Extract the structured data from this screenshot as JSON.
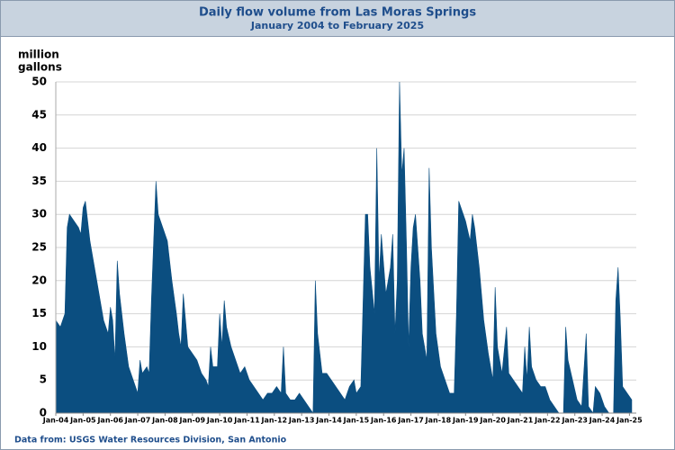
{
  "chart_data": {
    "type": "area",
    "title": "Daily flow volume from Las Moras Springs",
    "subtitle": "January 2004 to February 2025",
    "y_label": [
      "million",
      "gallons"
    ],
    "source": "Data from:  USGS Water Resources Division, San Antonio",
    "color": "#0b4e80",
    "grid": true,
    "ylim": [
      0,
      50
    ],
    "yticks": [
      0,
      5,
      10,
      15,
      20,
      25,
      30,
      35,
      40,
      45,
      50
    ],
    "xlim": [
      "2004-01",
      "2025-04"
    ],
    "xticks": [
      {
        "value": "2004-01",
        "label": "Jan-04"
      },
      {
        "value": "2005-01",
        "label": "Jan-05"
      },
      {
        "value": "2006-01",
        "label": "Jan-06"
      },
      {
        "value": "2007-01",
        "label": "Jan-07"
      },
      {
        "value": "2008-01",
        "label": "Jan-08"
      },
      {
        "value": "2009-01",
        "label": "Jan-09"
      },
      {
        "value": "2010-01",
        "label": "Jan-10"
      },
      {
        "value": "2011-01",
        "label": "Jan-11"
      },
      {
        "value": "2012-01",
        "label": "Jan-12"
      },
      {
        "value": "2013-01",
        "label": "Jan-13"
      },
      {
        "value": "2014-01",
        "label": "Jan-14"
      },
      {
        "value": "2015-01",
        "label": "Jan-15"
      },
      {
        "value": "2016-01",
        "label": "Jan-16"
      },
      {
        "value": "2017-01",
        "label": "Jan-17"
      },
      {
        "value": "2018-01",
        "label": "Jan-18"
      },
      {
        "value": "2019-01",
        "label": "Jan-19"
      },
      {
        "value": "2020-01",
        "label": "Jan-20"
      },
      {
        "value": "2021-01",
        "label": "Jan-21"
      },
      {
        "value": "2022-01",
        "label": "Jan-22"
      },
      {
        "value": "2023-01",
        "label": "Jan-23"
      },
      {
        "value": "2024-01",
        "label": "Jan-24"
      },
      {
        "value": "2025-01",
        "label": "Jan-25"
      }
    ],
    "x": [
      "2004-01",
      "2004-03",
      "2004-05",
      "2004-06",
      "2004-07",
      "2004-09",
      "2004-11",
      "2004-12",
      "2005-01",
      "2005-02",
      "2005-03",
      "2005-04",
      "2005-06",
      "2005-08",
      "2005-10",
      "2005-12",
      "2006-01",
      "2006-02",
      "2006-03",
      "2006-04",
      "2006-05",
      "2006-07",
      "2006-09",
      "2006-11",
      "2007-01",
      "2007-02",
      "2007-03",
      "2007-05",
      "2007-06",
      "2007-07",
      "2007-08",
      "2007-09",
      "2007-10",
      "2007-12",
      "2008-02",
      "2008-04",
      "2008-06",
      "2008-07",
      "2008-08",
      "2008-09",
      "2008-10",
      "2008-11",
      "2009-01",
      "2009-03",
      "2009-05",
      "2009-07",
      "2009-08",
      "2009-09",
      "2009-10",
      "2009-12",
      "2010-01",
      "2010-02",
      "2010-03",
      "2010-04",
      "2010-06",
      "2010-08",
      "2010-10",
      "2010-12",
      "2011-02",
      "2011-04",
      "2011-06",
      "2011-08",
      "2011-10",
      "2011-12",
      "2012-02",
      "2012-04",
      "2012-05",
      "2012-06",
      "2012-08",
      "2012-10",
      "2012-12",
      "2013-02",
      "2013-04",
      "2013-06",
      "2013-07",
      "2013-08",
      "2013-10",
      "2013-12",
      "2014-02",
      "2014-04",
      "2014-06",
      "2014-08",
      "2014-10",
      "2014-12",
      "2015-01",
      "2015-03",
      "2015-05",
      "2015-06",
      "2015-07",
      "2015-09",
      "2015-10",
      "2015-11",
      "2015-12",
      "2016-02",
      "2016-04",
      "2016-05",
      "2016-06",
      "2016-07",
      "2016-08",
      "2016-09",
      "2016-10",
      "2016-11",
      "2016-12",
      "2017-01",
      "2017-02",
      "2017-03",
      "2017-05",
      "2017-06",
      "2017-08",
      "2017-09",
      "2017-10",
      "2017-12",
      "2018-02",
      "2018-04",
      "2018-06",
      "2018-08",
      "2018-09",
      "2018-10",
      "2018-11",
      "2019-01",
      "2019-03",
      "2019-04",
      "2019-05",
      "2019-07",
      "2019-09",
      "2019-11",
      "2020-01",
      "2020-02",
      "2020-03",
      "2020-05",
      "2020-07",
      "2020-08",
      "2020-10",
      "2020-12",
      "2021-02",
      "2021-03",
      "2021-04",
      "2021-05",
      "2021-06",
      "2021-08",
      "2021-10",
      "2021-12",
      "2022-02",
      "2022-04",
      "2022-06",
      "2022-08",
      "2022-09",
      "2022-10",
      "2022-12",
      "2023-02",
      "2023-04",
      "2023-06",
      "2023-07",
      "2023-09",
      "2023-10",
      "2023-12",
      "2024-02",
      "2024-04",
      "2024-06",
      "2024-07",
      "2024-08",
      "2024-09",
      "2024-10",
      "2024-12",
      "2025-02"
    ],
    "values": [
      14,
      13,
      15,
      28,
      30,
      29,
      28,
      27,
      31,
      32,
      29,
      26,
      22,
      18,
      14,
      12,
      16,
      14,
      8,
      23,
      18,
      12,
      7,
      5,
      3,
      8,
      6,
      7,
      6,
      17,
      26,
      35,
      30,
      28,
      26,
      20,
      15,
      12,
      10,
      18,
      14,
      10,
      9,
      8,
      6,
      5,
      4,
      10,
      7,
      7,
      15,
      10,
      17,
      13,
      10,
      8,
      6,
      7,
      5,
      4,
      3,
      2,
      3,
      3,
      4,
      3,
      10,
      3,
      2,
      2,
      3,
      2,
      1,
      0,
      20,
      12,
      6,
      6,
      5,
      4,
      3,
      2,
      4,
      5,
      3,
      4,
      30,
      30,
      22,
      15,
      40,
      20,
      27,
      18,
      22,
      27,
      12,
      20,
      50,
      36,
      40,
      26,
      10,
      22,
      28,
      30,
      20,
      12,
      8,
      37,
      25,
      12,
      7,
      5,
      3,
      3,
      15,
      32,
      31,
      29,
      26,
      30,
      28,
      22,
      14,
      9,
      5,
      19,
      10,
      6,
      13,
      6,
      5,
      4,
      3,
      10,
      5,
      13,
      7,
      5,
      4,
      4,
      2,
      1,
      0,
      0,
      13,
      8,
      5,
      2,
      1,
      12,
      1,
      0,
      4,
      3,
      1,
      0,
      0,
      17,
      22,
      14,
      4,
      3,
      2
    ]
  }
}
